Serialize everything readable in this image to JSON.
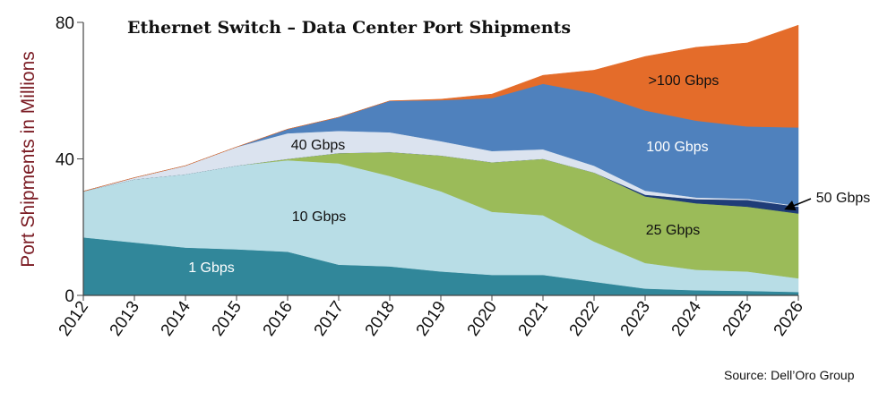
{
  "chart_data": {
    "type": "area",
    "stacked": true,
    "title": "Ethernet Switch – Data Center Port Shipments",
    "xlabel": "",
    "ylabel": "Port Shipments in Millions",
    "ylim": [
      0,
      80
    ],
    "yticks": [
      0,
      40,
      80
    ],
    "x": [
      "2012",
      "2013",
      "2014",
      "2015",
      "2016",
      "2017",
      "2018",
      "2019",
      "2020",
      "2021",
      "2022",
      "2023",
      "2024",
      "2025",
      "2026"
    ],
    "series": [
      {
        "name": "1 Gbps",
        "color": "#31879a",
        "values": [
          17,
          15.5,
          14,
          13.5,
          12.8,
          9,
          8.5,
          7,
          6,
          6,
          4,
          2,
          1.5,
          1.3,
          1
        ]
      },
      {
        "name": "10 Gbps",
        "color": "#b8dde6",
        "values": [
          13.5,
          18.5,
          21.5,
          24.5,
          26.8,
          29.7,
          26.5,
          23.5,
          18.5,
          17.5,
          11.8,
          7.5,
          6,
          5.7,
          4
        ]
      },
      {
        "name": "25 Gbps",
        "color": "#9bbb59",
        "values": [
          0,
          0,
          0,
          0,
          0.4,
          3,
          7,
          10.5,
          14.5,
          16.5,
          20.2,
          19.5,
          19.5,
          19,
          19
        ]
      },
      {
        "name": "50 Gbps",
        "color": "#1f3d78",
        "values": [
          0,
          0,
          0,
          0,
          0,
          0,
          0,
          0,
          0,
          0,
          0,
          0.5,
          1.2,
          2,
          2
        ]
      },
      {
        "name": "40 Gbps",
        "color": "#dbe3ef",
        "values": [
          0,
          0.5,
          2.5,
          5.5,
          7.5,
          6.5,
          5.8,
          4.2,
          3.3,
          2.8,
          2,
          1.2,
          0.5,
          0.3,
          0.2
        ]
      },
      {
        "name": "100 Gbps",
        "color": "#4f81bd",
        "values": [
          0,
          0,
          0,
          0,
          1.2,
          4,
          9.2,
          12,
          15.5,
          19.2,
          21.2,
          23.5,
          22.5,
          21.2,
          23
        ]
      },
      {
        "name": ">100 Gbps",
        "color": "#e46c2a",
        "values": [
          0,
          0,
          0,
          0,
          0,
          0,
          0,
          0.3,
          1.2,
          2.5,
          6.8,
          15.8,
          21.5,
          24.5,
          30
        ]
      }
    ],
    "annotations": [
      {
        "text": "1 Gbps"
      },
      {
        "text": "10 Gbps"
      },
      {
        "text": "25 Gbps"
      },
      {
        "text": "50 Gbps"
      },
      {
        "text": "40 Gbps"
      },
      {
        "text": "100 Gbps"
      },
      {
        "text": ">100 Gbps"
      }
    ],
    "source": "Source: Dell’Oro Group",
    "grid": false,
    "legend": "none"
  }
}
